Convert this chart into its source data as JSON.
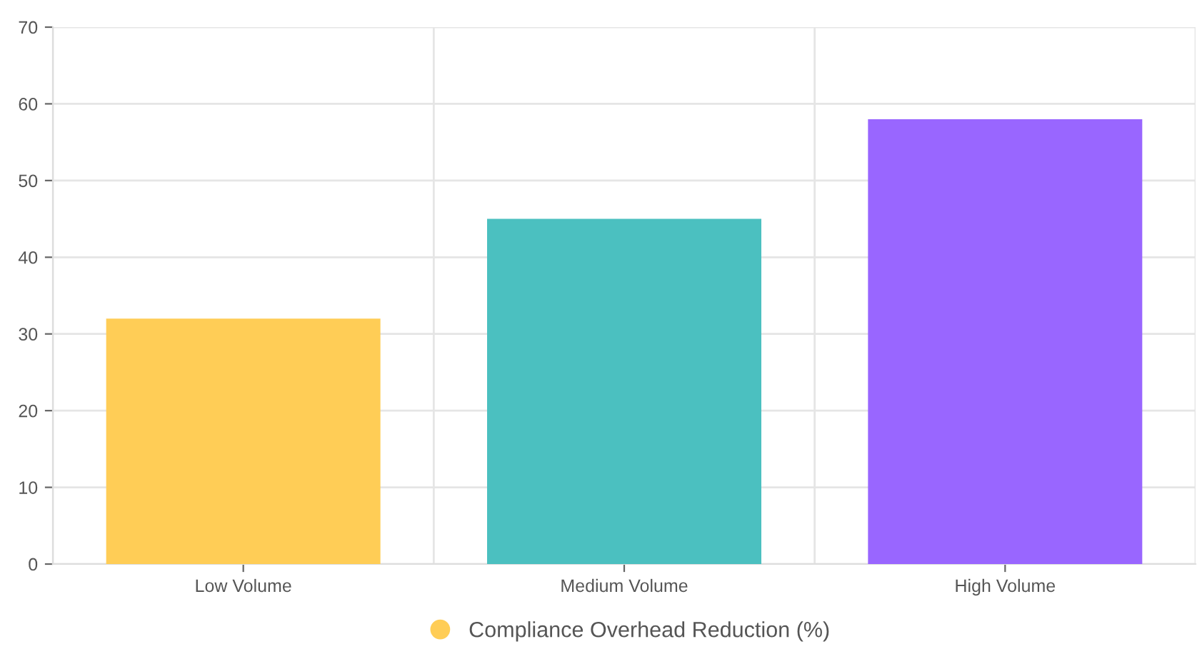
{
  "chart_data": {
    "type": "bar",
    "categories": [
      "Low Volume",
      "Medium Volume",
      "High Volume"
    ],
    "series": [
      {
        "name": "Compliance Overhead Reduction (%)",
        "colors": [
          "#ffcd56",
          "#4bc0c0",
          "#9966ff"
        ],
        "values": [
          32,
          45,
          58
        ]
      }
    ],
    "ylim": [
      0,
      70
    ],
    "yticks": [
      0,
      10,
      20,
      30,
      40,
      50,
      60,
      70
    ],
    "grid": true,
    "legend": "bottom"
  }
}
